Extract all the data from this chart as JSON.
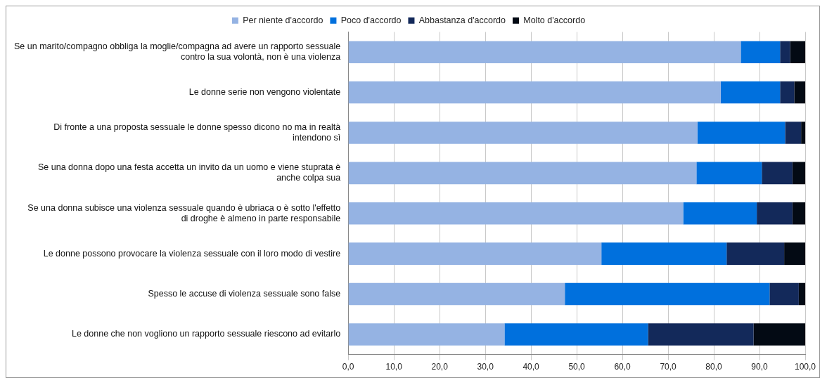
{
  "chart_data": {
    "type": "bar",
    "orientation": "horizontal",
    "stacked": true,
    "categories": [
      "Se un marito/compagno obbliga la moglie/compagna ad avere un rapporto sessuale contro la sua volontà, non è una violenza",
      "Le donne serie non vengono violentate",
      "Di fronte a una proposta sessuale le donne spesso dicono no ma in realtà intendono sì",
      "Se una donna dopo una festa accetta un invito da un uomo e viene stuprata è anche colpa sua",
      "Se una donna subisce una violenza sessuale quando è ubriaca o è sotto l'effetto di droghe è almeno in parte responsabile",
      "Le donne possono provocare la violenza sessuale con il loro modo di vestire",
      "Spesso le accuse di violenza sessuale sono false",
      "Le donne che non vogliono un rapporto sessuale riescono ad evitarlo"
    ],
    "series": [
      {
        "name": "Per niente d'accordo",
        "color": "#95b3e3",
        "values": [
          85.9,
          81.5,
          76.4,
          76.2,
          73.3,
          55.4,
          47.4,
          34.2
        ]
      },
      {
        "name": "Poco d'accordo",
        "color": "#0070dd",
        "values": [
          8.6,
          13.0,
          19.2,
          14.3,
          16.1,
          27.4,
          44.8,
          31.4
        ]
      },
      {
        "name": "Abbastanza d'accordo",
        "color": "#13295a",
        "values": [
          2.2,
          3.1,
          3.5,
          6.7,
          7.8,
          12.6,
          6.4,
          23.1
        ]
      },
      {
        "name": "Molto d'accordo",
        "color": "#030a14",
        "values": [
          3.3,
          2.4,
          0.9,
          2.8,
          2.8,
          4.6,
          1.4,
          11.3
        ]
      }
    ],
    "xlim": [
      0,
      100
    ],
    "xticks": [
      {
        "value": 0,
        "label": "0,0"
      },
      {
        "value": 10,
        "label": "10,0"
      },
      {
        "value": 20,
        "label": "20,0"
      },
      {
        "value": 30,
        "label": "30,0"
      },
      {
        "value": 40,
        "label": "40,0"
      },
      {
        "value": 50,
        "label": "50,0"
      },
      {
        "value": 60,
        "label": "60,0"
      },
      {
        "value": 70,
        "label": "70,0"
      },
      {
        "value": 80,
        "label": "80,0"
      },
      {
        "value": 90,
        "label": "90,0"
      },
      {
        "value": 100,
        "label": "100,0"
      }
    ],
    "grid": "x",
    "legend": "top"
  }
}
